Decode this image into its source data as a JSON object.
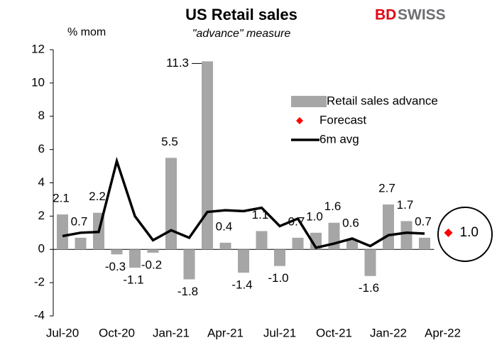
{
  "chart_data": {
    "type": "bar",
    "title": "US Retail sales",
    "subtitle": "\"advance\" measure",
    "y_label": "% mom",
    "logo": {
      "first": "BD",
      "second": "SWISS"
    },
    "categories": [
      "Jul-20",
      null,
      null,
      "Oct-20",
      null,
      null,
      "Jan-21",
      null,
      null,
      "Apr-21",
      null,
      null,
      "Jul-21",
      null,
      null,
      "Oct-21",
      null,
      null,
      "Jan-22",
      null,
      null,
      "Apr-22"
    ],
    "series": [
      {
        "name": "Retail sales advance",
        "type": "bar",
        "color": "#a6a6a6",
        "values": [
          2.1,
          0.7,
          2.2,
          -0.3,
          -1.1,
          -0.2,
          5.5,
          -1.8,
          11.3,
          0.4,
          -1.4,
          1.1,
          -1.0,
          0.7,
          1.0,
          1.6,
          0.6,
          -1.6,
          2.7,
          1.7,
          0.7,
          null
        ],
        "value_labels": [
          "2.1",
          "0.7",
          "2.2",
          "-0.3",
          "-1.1",
          "-0.2",
          "5.5",
          "-1.8",
          "11.3",
          "0.4",
          "-1.4",
          "1.1",
          "-1.0",
          "0.7",
          "1.0",
          "1.6",
          "0.6",
          "-1.6",
          "2.7",
          "1.7",
          "0.7",
          null
        ]
      },
      {
        "name": "Forecast",
        "type": "point",
        "color": "#ff0000",
        "values": [
          null,
          null,
          null,
          null,
          null,
          null,
          null,
          null,
          null,
          null,
          null,
          null,
          null,
          null,
          null,
          null,
          null,
          null,
          null,
          null,
          null,
          1.0
        ],
        "value_labels": [
          null,
          null,
          null,
          null,
          null,
          null,
          null,
          null,
          null,
          null,
          null,
          null,
          null,
          null,
          null,
          null,
          null,
          null,
          null,
          null,
          null,
          "1.0"
        ]
      },
      {
        "name": "6m avg",
        "type": "line",
        "color": "#000000",
        "values": [
          0.8,
          1.0,
          1.05,
          5.3,
          2.0,
          0.55,
          1.15,
          0.7,
          2.25,
          2.35,
          2.3,
          2.5,
          1.4,
          1.85,
          0.1,
          0.35,
          0.65,
          0.2,
          0.85,
          1.0,
          0.95,
          null
        ]
      }
    ],
    "ylim": [
      -4,
      12
    ],
    "yticks": [
      -4,
      -2,
      0,
      2,
      4,
      6,
      8,
      10,
      12
    ]
  }
}
